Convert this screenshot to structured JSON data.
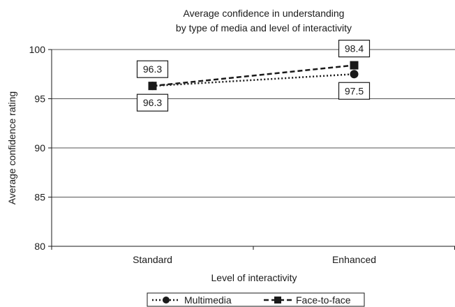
{
  "chart_data": {
    "type": "line",
    "title": [
      "Average confidence in understanding",
      "by type of media and level of interactivity"
    ],
    "xlabel": "Level of interactivity",
    "ylabel": "Average confidence rating",
    "categories": [
      "Standard",
      "Enhanced"
    ],
    "ylim": [
      80,
      100
    ],
    "yticks": [
      80,
      85,
      90,
      95,
      100
    ],
    "grid": true,
    "legend_position": "bottom",
    "series": [
      {
        "name": "Multimedia",
        "values": [
          96.3,
          97.5
        ],
        "labels": [
          "96.3",
          "97.5"
        ],
        "marker": "circle",
        "line_style": "dotted",
        "color": "#1a1a1a"
      },
      {
        "name": "Face-to-face",
        "values": [
          96.3,
          98.4
        ],
        "labels": [
          "96.3",
          "98.4"
        ],
        "marker": "square",
        "line_style": "dashed",
        "color": "#1a1a1a"
      }
    ]
  }
}
